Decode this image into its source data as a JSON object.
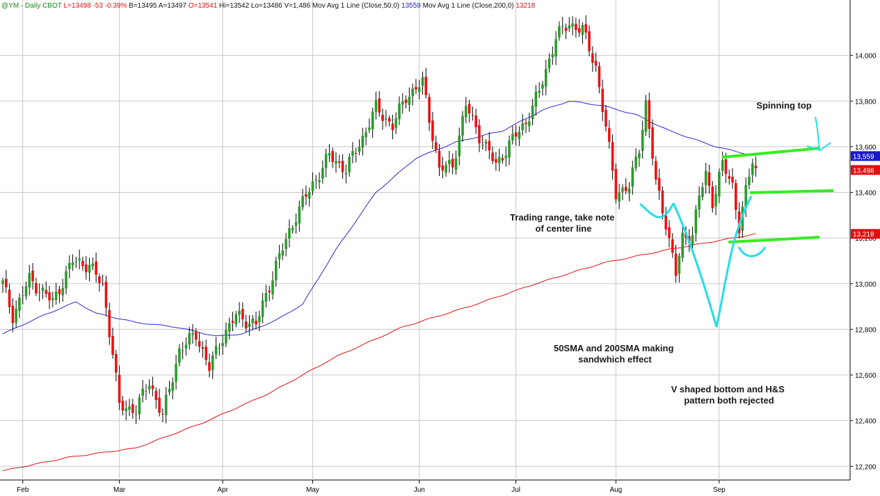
{
  "header": {
    "symbol": "@YM",
    "interval": "Daily",
    "exchange": "CBOT",
    "last": "L=13498",
    "change": "-53",
    "change_pct": "-0.39%",
    "bid": "B=13495",
    "ask": "A=13497",
    "open": "O=13541",
    "high": "Hi=13542",
    "low": "Lo=13486",
    "volume": "V=1,486",
    "ma50_label": "Mov Avg 1 Line (Close,50,0)",
    "ma50_value": "13559",
    "ma200_label": "Mov Avg 1 Line (Close,200,0)",
    "ma200_value": "13218"
  },
  "colors": {
    "up": "#2a9d2a",
    "down": "#ee1111",
    "ma50": "#2a2ad0",
    "ma200": "#e01010",
    "annotation_green": "#33ee22",
    "annotation_cyan": "#22dde8",
    "grid": "#c8c8c8",
    "header_green": "#138a13",
    "header_red": "#e01010",
    "header_blue": "#1a1ac8",
    "tag_blue": "#1a1ac8",
    "tag_red": "#e01010"
  },
  "chart_data": {
    "type": "candlestick",
    "ylim": [
      12140,
      14200
    ],
    "yticks": [
      12200,
      12400,
      12600,
      12800,
      13000,
      13200,
      13400,
      13600,
      13800,
      14000
    ],
    "ytick_labels": [
      "12,200",
      "12,400",
      "12,600",
      "12,800",
      "13,000",
      "13,200",
      "13,400",
      "13,600",
      "13,800",
      "14,000"
    ],
    "months": [
      {
        "label": "Feb",
        "bar": 6
      },
      {
        "label": "Mar",
        "bar": 35
      },
      {
        "label": "Apr",
        "bar": 66
      },
      {
        "label": "May",
        "bar": 93
      },
      {
        "label": "Jun",
        "bar": 125
      },
      {
        "label": "Jul",
        "bar": 154
      },
      {
        "label": "Aug",
        "bar": 184
      },
      {
        "label": "Sep",
        "bar": 215
      }
    ],
    "price_tags": [
      {
        "value": 13559,
        "label": "13,559",
        "color": "#1a1ac8"
      },
      {
        "value": 13498,
        "label": "13,498",
        "color": "#e01010"
      },
      {
        "value": 13218,
        "label": "13,218",
        "color": "#e01010"
      }
    ],
    "key_levels": [
      {
        "bar": 0,
        "price": 13000
      },
      {
        "bar": 3,
        "price": 12860
      },
      {
        "bar": 8,
        "price": 13020
      },
      {
        "bar": 15,
        "price": 12920
      },
      {
        "bar": 21,
        "price": 13100
      },
      {
        "bar": 26,
        "price": 13080
      },
      {
        "bar": 30,
        "price": 12990
      },
      {
        "bar": 33,
        "price": 12700
      },
      {
        "bar": 35,
        "price": 12460
      },
      {
        "bar": 40,
        "price": 12450
      },
      {
        "bar": 44,
        "price": 12570
      },
      {
        "bar": 48,
        "price": 12420
      },
      {
        "bar": 53,
        "price": 12710
      },
      {
        "bar": 58,
        "price": 12780
      },
      {
        "bar": 62,
        "price": 12630
      },
      {
        "bar": 66,
        "price": 12770
      },
      {
        "bar": 70,
        "price": 12860
      },
      {
        "bar": 76,
        "price": 12820
      },
      {
        "bar": 82,
        "price": 13080
      },
      {
        "bar": 88,
        "price": 13300
      },
      {
        "bar": 92,
        "price": 13410
      },
      {
        "bar": 98,
        "price": 13560
      },
      {
        "bar": 103,
        "price": 13500
      },
      {
        "bar": 108,
        "price": 13640
      },
      {
        "bar": 112,
        "price": 13770
      },
      {
        "bar": 117,
        "price": 13690
      },
      {
        "bar": 121,
        "price": 13820
      },
      {
        "bar": 126,
        "price": 13880
      },
      {
        "bar": 131,
        "price": 13500
      },
      {
        "bar": 135,
        "price": 13520
      },
      {
        "bar": 139,
        "price": 13780
      },
      {
        "bar": 143,
        "price": 13650
      },
      {
        "bar": 148,
        "price": 13520
      },
      {
        "bar": 152,
        "price": 13610
      },
      {
        "bar": 157,
        "price": 13710
      },
      {
        "bar": 161,
        "price": 13840
      },
      {
        "bar": 166,
        "price": 14080
      },
      {
        "bar": 170,
        "price": 14140
      },
      {
        "bar": 174,
        "price": 14110
      },
      {
        "bar": 178,
        "price": 13950
      },
      {
        "bar": 181,
        "price": 13680
      },
      {
        "bar": 184,
        "price": 13400
      },
      {
        "bar": 188,
        "price": 13420
      },
      {
        "bar": 191,
        "price": 13600
      },
      {
        "bar": 193,
        "price": 13790
      },
      {
        "bar": 196,
        "price": 13440
      },
      {
        "bar": 199,
        "price": 13270
      },
      {
        "bar": 202,
        "price": 13040
      },
      {
        "bar": 204,
        "price": 13200
      },
      {
        "bar": 207,
        "price": 13220
      },
      {
        "bar": 209,
        "price": 13380
      },
      {
        "bar": 211,
        "price": 13480
      },
      {
        "bar": 213,
        "price": 13360
      },
      {
        "bar": 216,
        "price": 13520
      },
      {
        "bar": 219,
        "price": 13430
      },
      {
        "bar": 221,
        "price": 13250
      },
      {
        "bar": 223,
        "price": 13400
      },
      {
        "bar": 225,
        "price": 13540
      },
      {
        "bar": 226,
        "price": 13498
      }
    ],
    "ma50": [
      {
        "bar": 0,
        "value": 12780
      },
      {
        "bar": 12,
        "value": 12860
      },
      {
        "bar": 22,
        "value": 12920
      },
      {
        "bar": 28,
        "value": 12870
      },
      {
        "bar": 40,
        "value": 12830
      },
      {
        "bar": 52,
        "value": 12810
      },
      {
        "bar": 64,
        "value": 12770
      },
      {
        "bar": 72,
        "value": 12780
      },
      {
        "bar": 82,
        "value": 12840
      },
      {
        "bar": 90,
        "value": 12910
      },
      {
        "bar": 100,
        "value": 13150
      },
      {
        "bar": 112,
        "value": 13400
      },
      {
        "bar": 124,
        "value": 13550
      },
      {
        "bar": 136,
        "value": 13620
      },
      {
        "bar": 150,
        "value": 13670
      },
      {
        "bar": 162,
        "value": 13760
      },
      {
        "bar": 170,
        "value": 13800
      },
      {
        "bar": 180,
        "value": 13780
      },
      {
        "bar": 190,
        "value": 13740
      },
      {
        "bar": 200,
        "value": 13670
      },
      {
        "bar": 214,
        "value": 13600
      },
      {
        "bar": 226,
        "value": 13559
      }
    ],
    "ma200": [
      {
        "bar": 0,
        "value": 12180
      },
      {
        "bar": 20,
        "value": 12240
      },
      {
        "bar": 40,
        "value": 12280
      },
      {
        "bar": 60,
        "value": 12390
      },
      {
        "bar": 80,
        "value": 12520
      },
      {
        "bar": 100,
        "value": 12680
      },
      {
        "bar": 120,
        "value": 12810
      },
      {
        "bar": 140,
        "value": 12900
      },
      {
        "bar": 160,
        "value": 13000
      },
      {
        "bar": 180,
        "value": 13090
      },
      {
        "bar": 200,
        "value": 13150
      },
      {
        "bar": 226,
        "value": 13218
      }
    ],
    "annotations": [
      {
        "id": "spinning-top",
        "text": "Spinning top"
      },
      {
        "id": "trading-range",
        "text": "Trading range, take note of center line",
        "lines": [
          "Trading range, take note",
          "of center line"
        ]
      },
      {
        "id": "sma-sandwich",
        "text": "50SMA and 200SMA making sandwhich effect",
        "lines": [
          "50SMA and 200SMA making",
          "sandwhich effect"
        ]
      },
      {
        "id": "v-bottom",
        "text": "V shaped bottom and H&S pattern both rejected",
        "lines": [
          "V shaped bottom and H&S",
          "pattern both rejected"
        ]
      }
    ]
  }
}
